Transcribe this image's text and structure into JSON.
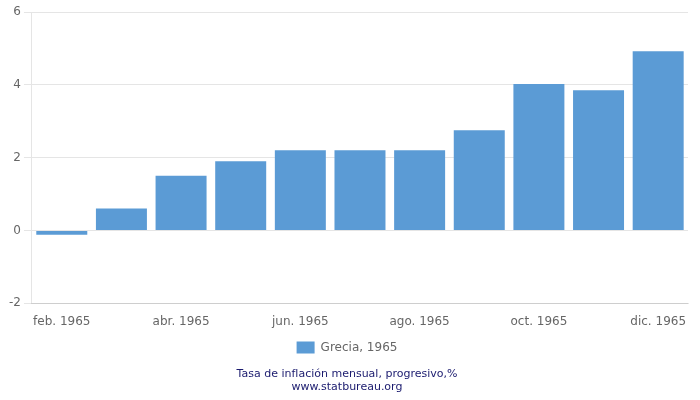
{
  "chart_data": {
    "type": "bar",
    "categories": [
      "feb. 1965",
      null,
      "abr. 1965",
      null,
      "jun. 1965",
      null,
      "ago. 1965",
      null,
      "oct. 1965",
      null,
      "dic. 1965"
    ],
    "series": [
      {
        "name": "Grecia, 1965",
        "color": "#5b9bd5",
        "values": [
          -0.12,
          0.6,
          1.5,
          1.9,
          2.2,
          2.2,
          2.2,
          2.75,
          4.02,
          3.85,
          4.92
        ]
      }
    ],
    "ylim": [
      -2,
      6
    ],
    "yticks": [
      -2,
      0,
      2,
      4,
      6
    ],
    "grid": true,
    "legend": "bottom",
    "annotations": [
      "Tasa de inflación mensual, progresivo,%",
      "www.statbureau.org"
    ]
  }
}
